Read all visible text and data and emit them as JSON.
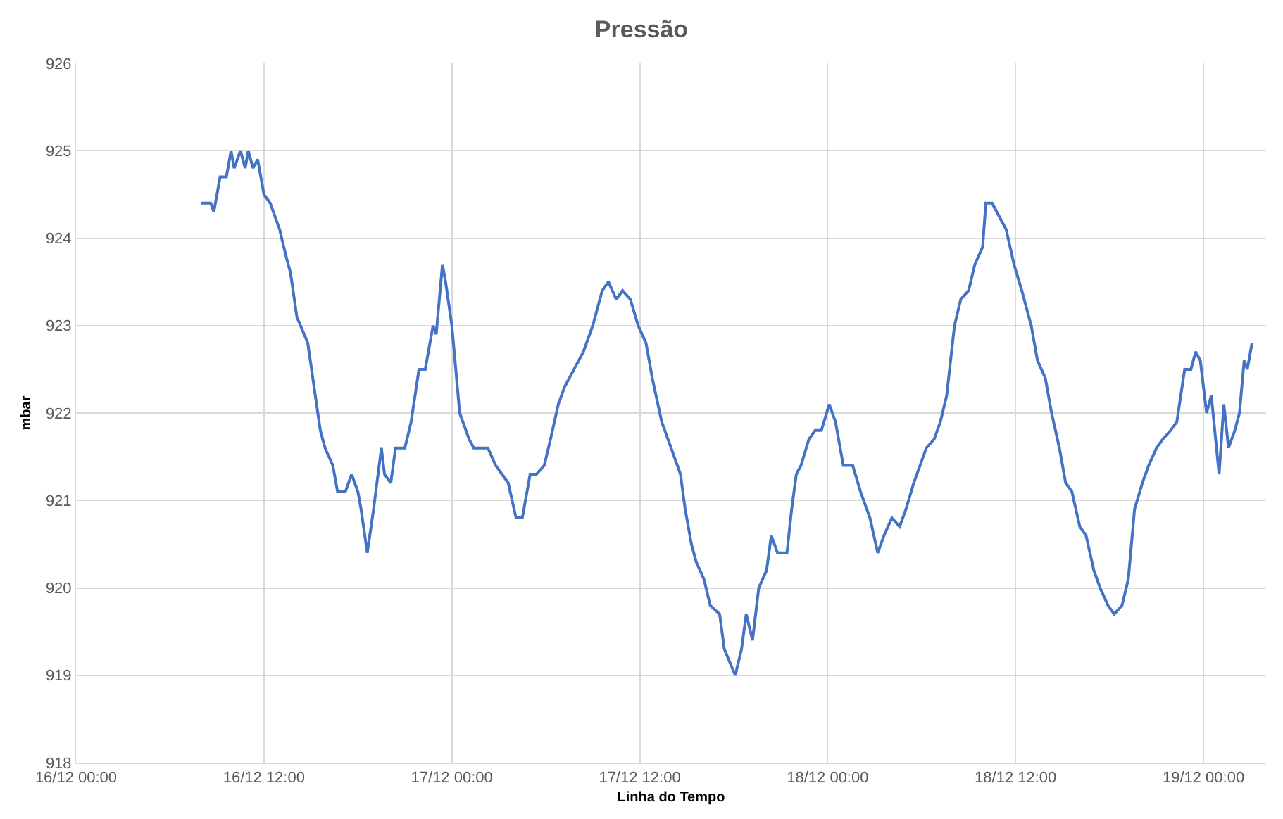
{
  "chart_data": {
    "type": "line",
    "title": "Pressão",
    "xlabel": "Linha do Tempo",
    "ylabel": "mbar",
    "x": [
      "--12-16T08:00",
      "--12-16T08:36",
      "--12-16T08:48",
      "--12-16T09:12",
      "--12-16T09:36",
      "--12-16T09:54",
      "--12-16T10:06",
      "--12-16T10:30",
      "--12-16T10:48",
      "--12-16T11:00",
      "--12-16T11:18",
      "--12-16T11:36",
      "--12-16T12:00",
      "--12-16T12:24",
      "--12-16T13:00",
      "--12-16T13:24",
      "--12-16T13:42",
      "--12-16T14:06",
      "--12-16T14:48",
      "--12-16T15:12",
      "--12-16T15:36",
      "--12-16T15:54",
      "--12-16T16:24",
      "--12-16T16:42",
      "--12-16T17:12",
      "--12-16T17:36",
      "--12-16T18:00",
      "--12-16T18:12",
      "--12-16T18:36",
      "--12-16T19:00",
      "--12-16T19:30",
      "--12-16T19:42",
      "--12-16T20:06",
      "--12-16T20:24",
      "--12-16T21:00",
      "--12-16T21:24",
      "--12-16T21:54",
      "--12-16T22:18",
      "--12-16T22:36",
      "--12-16T22:48",
      "--12-16T23:00",
      "--12-16T23:24",
      "--12-16T23:36",
      "--12-17T00:00",
      "--12-17T00:30",
      "--12-17T01:06",
      "--12-17T01:24",
      "--12-17T02:18",
      "--12-17T02:48",
      "--12-17T03:12",
      "--12-17T03:36",
      "--12-17T04:06",
      "--12-17T04:30",
      "--12-17T05:00",
      "--12-17T05:24",
      "--12-17T05:54",
      "--12-17T06:18",
      "--12-17T06:48",
      "--12-17T07:12",
      "--12-17T07:48",
      "--12-17T08:24",
      "--12-17T09:00",
      "--12-17T09:36",
      "--12-17T10:00",
      "--12-17T10:30",
      "--12-17T10:54",
      "--12-17T11:24",
      "--12-17T11:54",
      "--12-17T12:24",
      "--12-17T12:48",
      "--12-17T13:24",
      "--12-17T14:00",
      "--12-17T14:36",
      "--12-17T14:54",
      "--12-17T15:18",
      "--12-17T15:36",
      "--12-17T16:06",
      "--12-17T16:30",
      "--12-17T17:06",
      "--12-17T17:24",
      "--12-17T18:06",
      "--12-17T18:30",
      "--12-17T18:48",
      "--12-17T19:12",
      "--12-17T19:36",
      "--12-17T20:06",
      "--12-17T20:24",
      "--12-17T20:48",
      "--12-17T21:24",
      "--12-17T21:42",
      "--12-17T22:00",
      "--12-17T22:18",
      "--12-17T22:48",
      "--12-17T23:12",
      "--12-17T23:36",
      "--12-18T00:06",
      "--12-18T00:30",
      "--12-18T01:00",
      "--12-18T01:36",
      "--12-18T02:06",
      "--12-18T02:42",
      "--12-18T03:12",
      "--12-18T03:36",
      "--12-18T04:06",
      "--12-18T04:36",
      "--12-18T05:00",
      "--12-18T05:30",
      "--12-18T05:54",
      "--12-18T06:18",
      "--12-18T06:48",
      "--12-18T07:12",
      "--12-18T07:36",
      "--12-18T08:06",
      "--12-18T08:30",
      "--12-18T09:00",
      "--12-18T09:24",
      "--12-18T09:54",
      "--12-18T10:06",
      "--12-18T10:30",
      "--12-18T10:48",
      "--12-18T11:24",
      "--12-18T11:54",
      "--12-18T12:24",
      "--12-18T13:00",
      "--12-18T13:24",
      "--12-18T13:54",
      "--12-18T14:18",
      "--12-18T14:48",
      "--12-18T15:12",
      "--12-18T15:36",
      "--12-18T16:06",
      "--12-18T16:30",
      "--12-18T17:00",
      "--12-18T17:24",
      "--12-18T17:54",
      "--12-18T18:18",
      "--12-18T18:48",
      "--12-18T19:12",
      "--12-18T19:36",
      "--12-18T20:06",
      "--12-18T20:30",
      "--12-18T21:00",
      "--12-18T21:24",
      "--12-18T21:54",
      "--12-18T22:18",
      "--12-18T22:48",
      "--12-18T23:12",
      "--12-18T23:30",
      "--12-18T23:48",
      "--12-19T00:12",
      "--12-19T00:30",
      "--12-19T01:00",
      "--12-19T01:18",
      "--12-19T01:36",
      "--12-19T02:00",
      "--12-19T02:18",
      "--12-19T02:36",
      "--12-19T02:48",
      "--12-19T03:06"
    ],
    "series": [
      {
        "color": "#4472c4",
        "values": [
          924.4,
          924.4,
          924.3,
          924.7,
          924.7,
          925.0,
          924.8,
          925.0,
          924.8,
          925.0,
          924.8,
          924.9,
          924.5,
          924.4,
          924.1,
          923.8,
          923.6,
          923.1,
          922.8,
          922.3,
          921.8,
          921.6,
          921.4,
          921.1,
          921.1,
          921.3,
          921.1,
          920.9,
          920.4,
          920.9,
          921.6,
          921.3,
          921.2,
          921.6,
          921.6,
          921.9,
          922.5,
          922.5,
          922.8,
          923.0,
          922.9,
          923.7,
          923.5,
          923.0,
          922.0,
          921.7,
          921.6,
          921.6,
          921.4,
          921.3,
          921.2,
          920.8,
          920.8,
          921.3,
          921.3,
          921.4,
          921.7,
          922.1,
          922.3,
          922.5,
          922.7,
          923.0,
          923.4,
          923.5,
          923.3,
          923.4,
          923.3,
          923.0,
          922.8,
          922.4,
          921.9,
          921.6,
          921.3,
          920.9,
          920.5,
          920.3,
          920.1,
          919.8,
          919.7,
          919.3,
          919.0,
          919.3,
          919.7,
          919.4,
          920.0,
          920.2,
          920.6,
          920.4,
          920.4,
          920.9,
          921.3,
          921.4,
          921.7,
          921.8,
          921.8,
          922.1,
          921.9,
          921.4,
          921.4,
          921.1,
          920.8,
          920.4,
          920.6,
          920.8,
          920.7,
          920.9,
          921.2,
          921.4,
          921.6,
          921.7,
          921.9,
          922.2,
          923.0,
          923.3,
          923.4,
          923.7,
          923.9,
          924.4,
          924.4,
          924.3,
          924.1,
          923.7,
          923.4,
          923.0,
          922.6,
          922.4,
          922.0,
          921.6,
          921.2,
          921.1,
          920.7,
          920.6,
          920.2,
          920.0,
          919.8,
          919.7,
          919.8,
          920.1,
          920.9,
          921.2,
          921.4,
          921.6,
          921.7,
          921.8,
          921.9,
          922.5,
          922.5,
          922.7,
          922.6,
          922.0,
          922.2,
          921.3,
          922.1,
          921.6,
          921.8,
          922.0,
          922.6,
          922.5,
          922.8
        ]
      }
    ],
    "xlim": [
      "--12-16T00:00",
      "--12-19T04:00"
    ],
    "xticks": [
      {
        "value": "--12-16T00:00",
        "label": "16/12 00:00"
      },
      {
        "value": "--12-16T12:00",
        "label": "16/12 12:00"
      },
      {
        "value": "--12-17T00:00",
        "label": "17/12 00:00"
      },
      {
        "value": "--12-17T12:00",
        "label": "17/12 12:00"
      },
      {
        "value": "--12-18T00:00",
        "label": "18/12 00:00"
      },
      {
        "value": "--12-18T12:00",
        "label": "18/12 12:00"
      },
      {
        "value": "--12-19T00:00",
        "label": "19/12 00:00"
      }
    ],
    "ylim": [
      918,
      926
    ],
    "yticks": [
      918,
      919,
      920,
      921,
      922,
      923,
      924,
      925,
      926
    ],
    "grid": true,
    "marker": "none",
    "line_style": "solid"
  }
}
